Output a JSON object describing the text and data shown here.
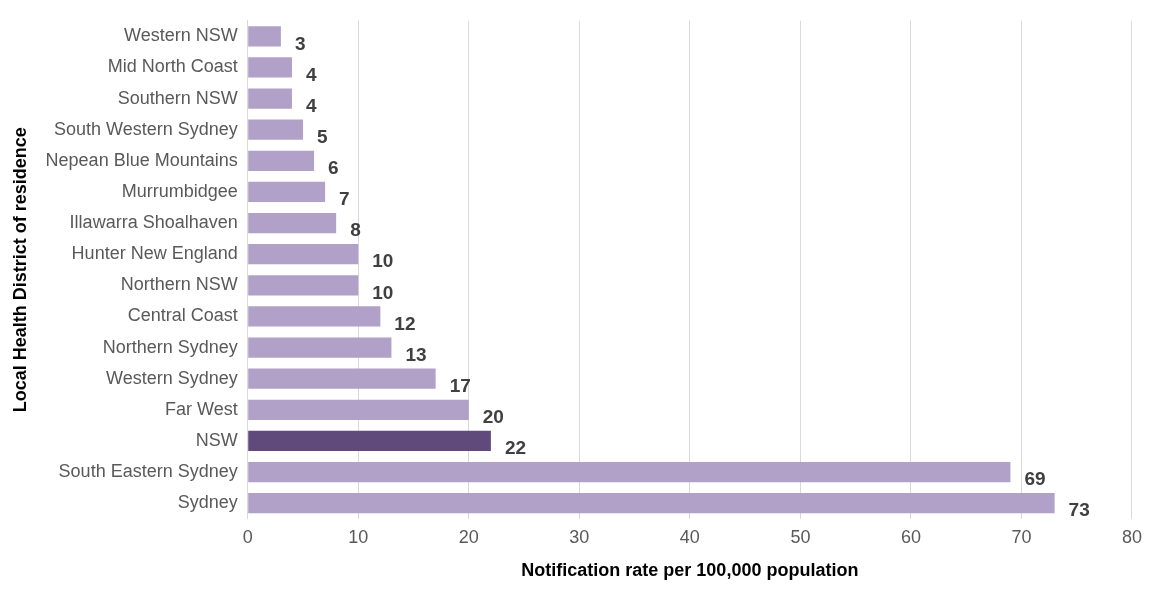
{
  "chart_data": {
    "type": "bar",
    "orientation": "horizontal",
    "xlabel": "Notification rate per 100,000 population",
    "ylabel": "Local Health District of residence",
    "categories": [
      "Western NSW",
      "Mid North Coast",
      "Southern NSW",
      "South Western Sydney",
      "Nepean Blue Mountains",
      "Murrumbidgee",
      "Illawarra Shoalhaven",
      "Hunter New England",
      "Northern NSW",
      "Central Coast",
      "Northern Sydney",
      "Western Sydney",
      "Far West",
      "NSW",
      "South Eastern Sydney",
      "Sydney"
    ],
    "values": [
      3,
      4,
      4,
      5,
      6,
      7,
      8,
      10,
      10,
      12,
      13,
      17,
      20,
      22,
      69,
      73
    ],
    "colors": [
      "#b1a0c7",
      "#b1a0c7",
      "#b1a0c7",
      "#b1a0c7",
      "#b1a0c7",
      "#b1a0c7",
      "#b1a0c7",
      "#b1a0c7",
      "#b1a0c7",
      "#b1a0c7",
      "#b1a0c7",
      "#b1a0c7",
      "#b1a0c7",
      "#604a7b",
      "#b1a0c7",
      "#b1a0c7"
    ],
    "xlim": [
      0,
      80
    ],
    "xticks": [
      0,
      10,
      20,
      30,
      40,
      50,
      60,
      70,
      80
    ],
    "grid": "x",
    "legend": false,
    "data_labels": true
  }
}
